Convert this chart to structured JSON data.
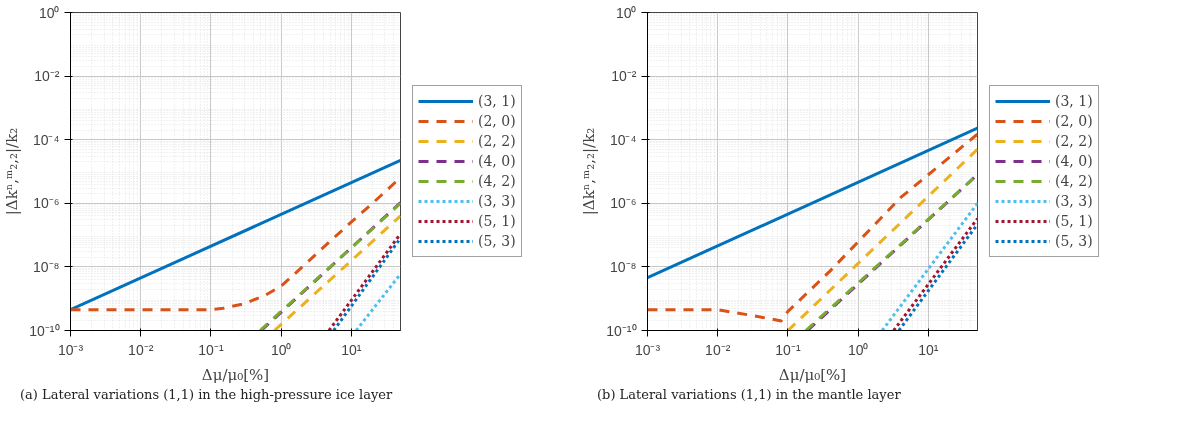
{
  "chart_data": [
    {
      "type": "line",
      "title": "(a) Lateral variations (1,1) in the high-pressure ice layer",
      "xlabel": "Δμ/μ₀[%]",
      "ylabel": "|Δkⁿ,ᵐ₂,₂|/k₂",
      "log": "xy",
      "grid": true,
      "legend": "right",
      "xlim": [
        0.001,
        50
      ],
      "ylim": [
        1e-10,
        1
      ],
      "xticks": [
        {
          "value": 0.001,
          "label": "10⁻³"
        },
        {
          "value": 0.01,
          "label": "10⁻²"
        },
        {
          "value": 0.1,
          "label": "10⁻¹"
        },
        {
          "value": 1,
          "label": "10⁰"
        },
        {
          "value": 10,
          "label": "10¹"
        }
      ],
      "yticks": [
        {
          "value": 1e-10,
          "label": "10⁻¹⁰"
        },
        {
          "value": 1e-08,
          "label": "10⁻⁸"
        },
        {
          "value": 1e-06,
          "label": "10⁻⁶"
        },
        {
          "value": 0.0001,
          "label": "10⁻⁴"
        },
        {
          "value": 0.01,
          "label": "10⁻²"
        },
        {
          "value": 1,
          "label": "10⁰"
        }
      ],
      "series": [
        {
          "name": "(3, 1)",
          "color": "#0072bd",
          "line_style": "solid",
          "x": [
            0.001,
            50
          ],
          "values": [
            4.5e-10,
            2.25e-05
          ]
        },
        {
          "name": "(2, 0)",
          "color": "#d95319",
          "line_style": "dashed",
          "x": [
            0.001,
            0.1,
            0.15,
            0.3,
            0.6,
            1,
            2,
            5,
            10,
            20,
            50
          ],
          "values": [
            4.5e-10,
            4.5e-10,
            5e-10,
            7e-10,
            1.3e-09,
            2.5e-09,
            1e-08,
            6.5e-08,
            2.6e-07,
            1e-06,
            6.5e-06
          ]
        },
        {
          "name": "(2, 2)",
          "color": "#edb120",
          "line_style": "dashed",
          "x": [
            0.8,
            50
          ],
          "values": [
            1e-10,
            4e-07
          ]
        },
        {
          "name": "(4, 0)",
          "color": "#7e2f8e",
          "line_style": "dashed",
          "x": [
            0.52,
            50
          ],
          "values": [
            1e-10,
            1.05e-06
          ]
        },
        {
          "name": "(4, 2)",
          "color": "#77ac30",
          "line_style": "dashed",
          "x": [
            0.5,
            50
          ],
          "values": [
            1e-10,
            1e-06
          ]
        },
        {
          "name": "(3, 3)",
          "color": "#4dbeee",
          "line_style": "dotted",
          "x": [
            11.7,
            50
          ],
          "values": [
            1e-10,
            6e-09
          ]
        },
        {
          "name": "(5, 1)",
          "color": "#a2142f",
          "line_style": "dotted",
          "x": [
            4.8,
            50
          ],
          "values": [
            1e-10,
            1.1e-07
          ]
        },
        {
          "name": "(5, 3)",
          "color": "#0072bd",
          "line_style": "dotted",
          "x": [
            5.6,
            50
          ],
          "values": [
            1e-10,
            8e-08
          ]
        }
      ]
    },
    {
      "type": "line",
      "title": "(b) Lateral variations (1,1) in the mantle layer",
      "xlabel": "Δμ/μ₀[%]",
      "ylabel": "|Δkⁿ,ᵐ₂,₂|/k₂",
      "log": "xy",
      "grid": true,
      "legend": "right",
      "xlim": [
        0.001,
        50
      ],
      "ylim": [
        1e-10,
        1
      ],
      "xticks": [
        {
          "value": 0.001,
          "label": "10⁻³"
        },
        {
          "value": 0.01,
          "label": "10⁻²"
        },
        {
          "value": 0.1,
          "label": "10⁻¹"
        },
        {
          "value": 1,
          "label": "10⁰"
        },
        {
          "value": 10,
          "label": "10¹"
        }
      ],
      "yticks": [
        {
          "value": 1e-10,
          "label": "10⁻¹⁰"
        },
        {
          "value": 1e-08,
          "label": "10⁻⁸"
        },
        {
          "value": 1e-06,
          "label": "10⁻⁶"
        },
        {
          "value": 0.0001,
          "label": "10⁻⁴"
        },
        {
          "value": 0.01,
          "label": "10⁻²"
        },
        {
          "value": 1,
          "label": "10⁰"
        }
      ],
      "series": [
        {
          "name": "(3, 1)",
          "color": "#0072bd",
          "line_style": "solid",
          "x": [
            0.001,
            50
          ],
          "values": [
            4.6e-09,
            0.00023
          ]
        },
        {
          "name": "(2, 0)",
          "color": "#d95319",
          "line_style": "dashed",
          "x": [
            0.001,
            0.01,
            0.03,
            0.08,
            0.1,
            0.4,
            4,
            50
          ],
          "values": [
            4.5e-10,
            4.5e-10,
            3e-10,
            2e-10,
            4e-10,
            7.5e-09,
            1.5e-06,
            0.00015
          ]
        },
        {
          "name": "(2, 2)",
          "color": "#edb120",
          "line_style": "dashed",
          "x": [
            0.1,
            50
          ],
          "values": [
            1e-10,
            5e-05
          ]
        },
        {
          "name": "(4, 0)",
          "color": "#7e2f8e",
          "line_style": "dashed",
          "x": [
            0.19,
            50
          ],
          "values": [
            1e-10,
            8e-06
          ]
        },
        {
          "name": "(4, 2)",
          "color": "#77ac30",
          "line_style": "dashed",
          "x": [
            0.18,
            50
          ],
          "values": [
            1e-10,
            8e-06
          ]
        },
        {
          "name": "(3, 3)",
          "color": "#4dbeee",
          "line_style": "dotted",
          "x": [
            2.2,
            50
          ],
          "values": [
            1e-10,
            1e-06
          ]
        },
        {
          "name": "(5, 1)",
          "color": "#a2142f",
          "line_style": "dotted",
          "x": [
            3.2,
            50
          ],
          "values": [
            1e-10,
            3.3e-07
          ]
        },
        {
          "name": "(5, 3)",
          "color": "#0072bd",
          "line_style": "dotted",
          "x": [
            3.8,
            50
          ],
          "values": [
            1e-10,
            2.2e-07
          ]
        }
      ]
    }
  ]
}
